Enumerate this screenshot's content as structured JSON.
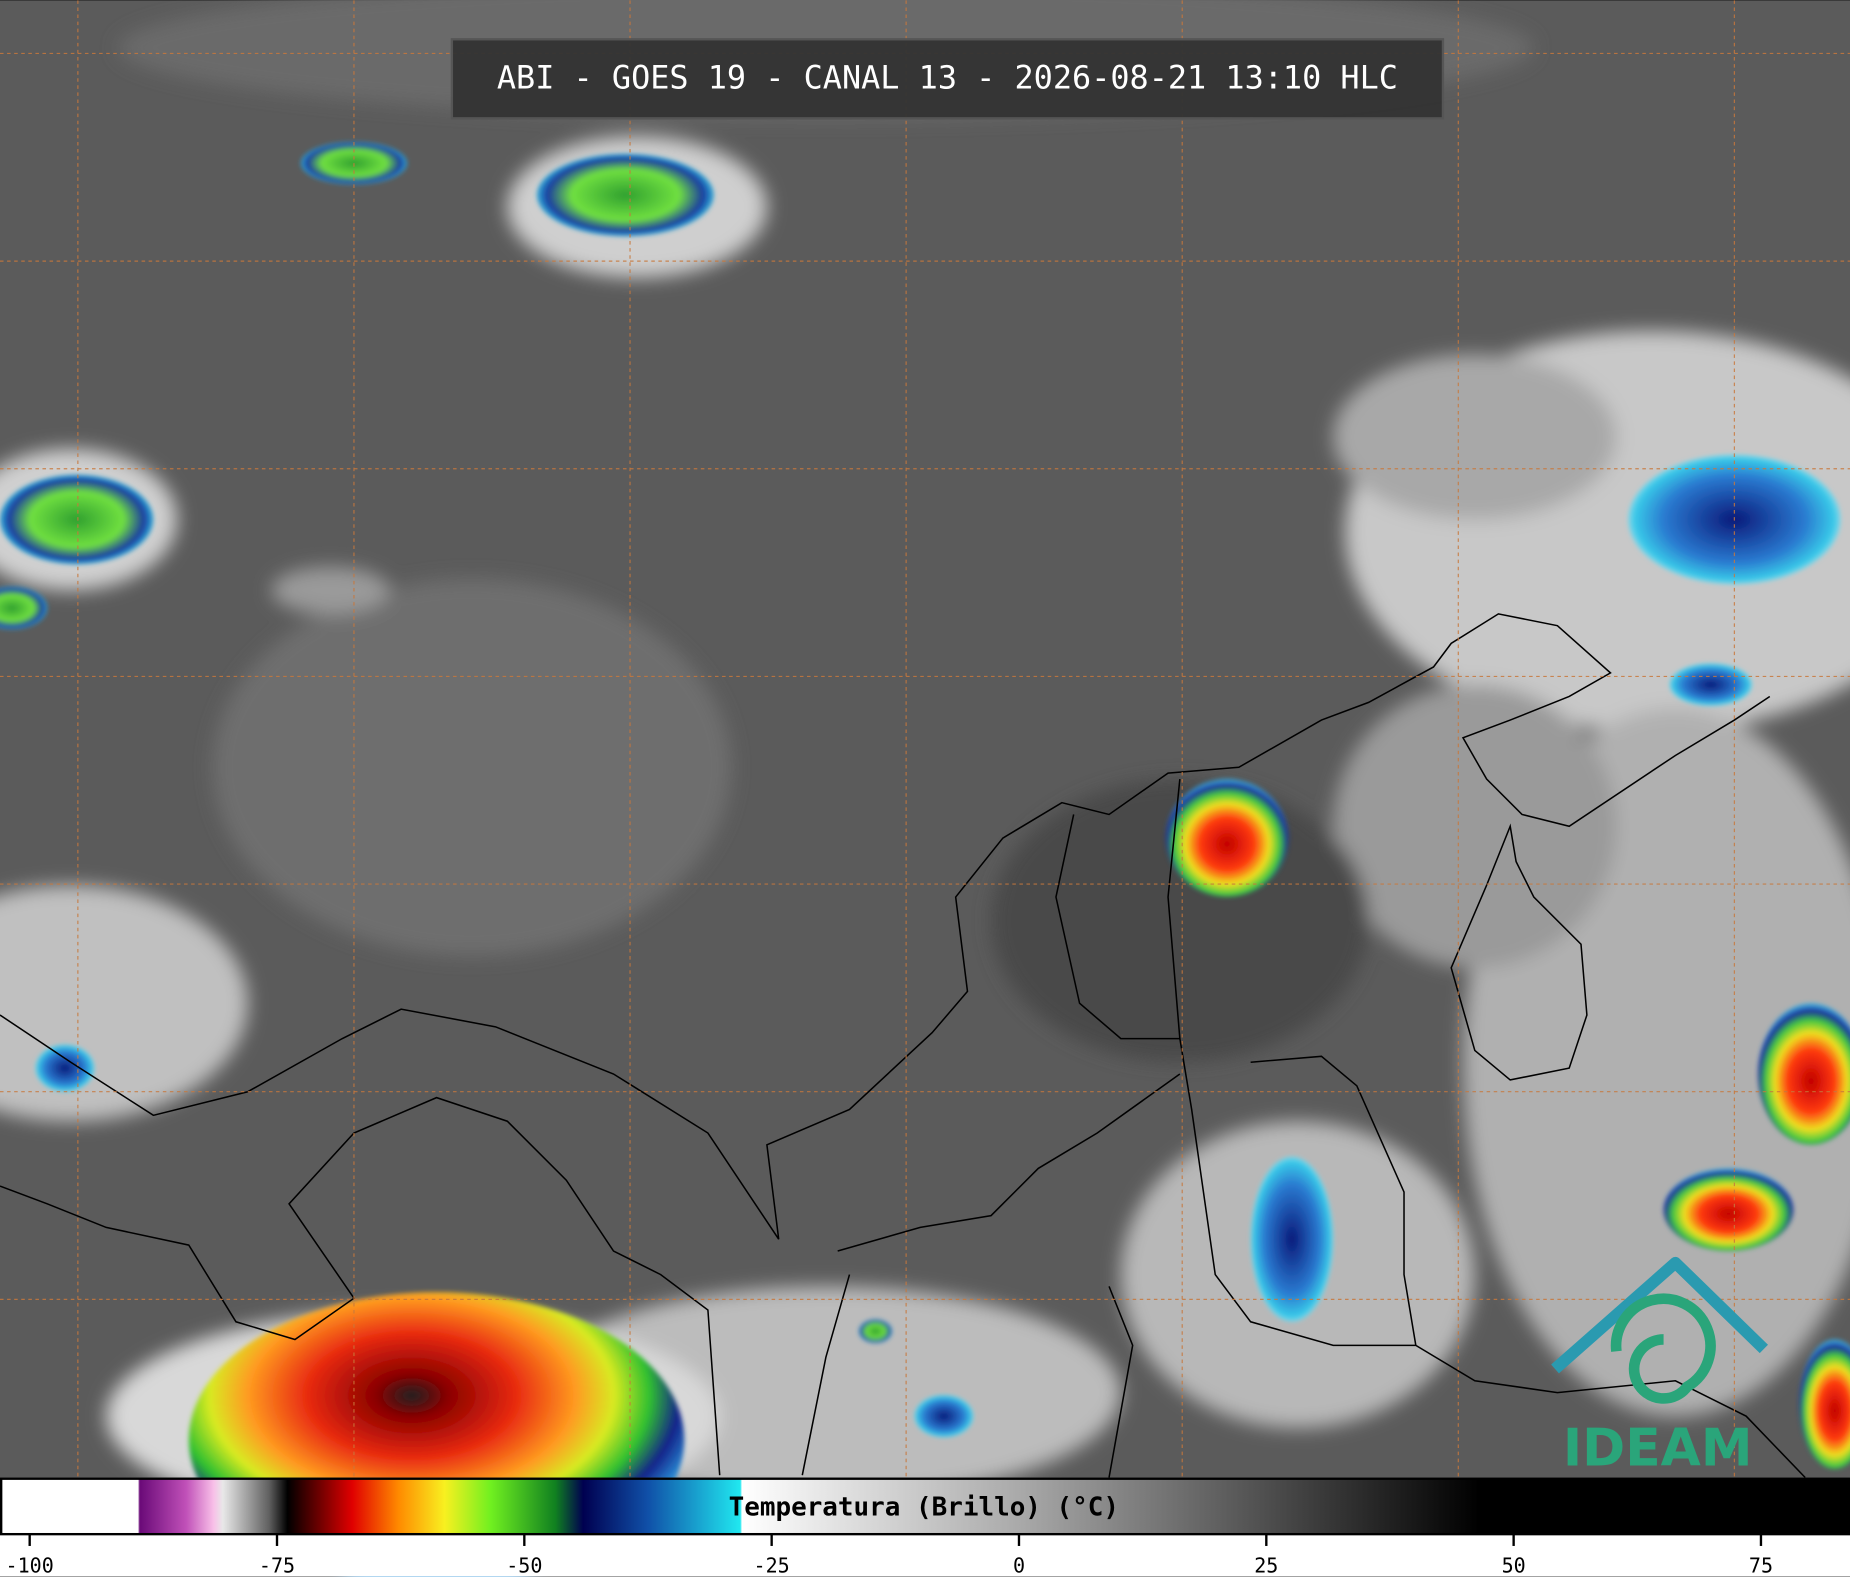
{
  "header": {
    "title": "ABI - GOES 19 - CANAL 13 - 2026-08-21 13:10 HLC"
  },
  "colorbar": {
    "label": "Temperatura (Brillo) (°C)",
    "lim": [
      -103,
      84
    ],
    "ticks": [
      -100,
      -75,
      -50,
      -25,
      0,
      25,
      50,
      75
    ]
  },
  "logo": {
    "text": "IDEAM"
  }
}
